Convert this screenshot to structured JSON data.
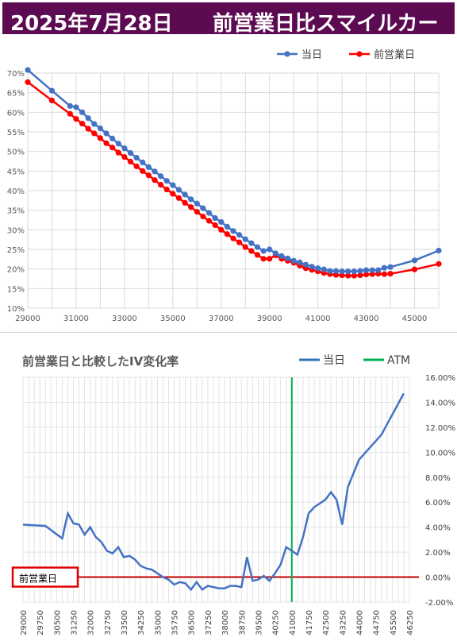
{
  "header": {
    "date": "2025年7月28日",
    "title": "前営業日比スマイルカーブ",
    "bg_color": "#5c0b52"
  },
  "chart_data": [
    {
      "type": "line",
      "title": "",
      "legend_position": "top-right",
      "grid": true,
      "xlim": [
        29000,
        46000
      ],
      "ylim": [
        10,
        70
      ],
      "x_ticks": [
        29000,
        31000,
        33000,
        35000,
        37000,
        39000,
        41000,
        43000,
        45000
      ],
      "y_ticks": [
        10,
        15,
        20,
        25,
        30,
        35,
        40,
        45,
        50,
        55,
        60,
        65,
        70
      ],
      "y_tick_suffix": "%",
      "series": [
        {
          "name": "当日",
          "color": "#4472c4",
          "x": [
            29000,
            30000,
            30750,
            31000,
            31250,
            31500,
            31750,
            32000,
            32250,
            32500,
            32750,
            33000,
            33250,
            33500,
            33750,
            34000,
            34250,
            34500,
            34750,
            35000,
            35250,
            35500,
            35750,
            36000,
            36250,
            36500,
            36750,
            37000,
            37250,
            37500,
            37750,
            38000,
            38250,
            38500,
            38750,
            39000,
            39250,
            39500,
            39750,
            40000,
            40250,
            40500,
            40750,
            41000,
            41250,
            41500,
            41750,
            42000,
            42250,
            42500,
            42750,
            43000,
            43250,
            43500,
            43750,
            44000,
            45000,
            46000
          ],
          "y": [
            70.8,
            65.5,
            61.6,
            61.3,
            60.0,
            58.5,
            57.0,
            55.9,
            54.6,
            53.3,
            52.0,
            50.8,
            49.6,
            48.4,
            47.2,
            46.0,
            44.9,
            43.7,
            42.5,
            41.4,
            40.2,
            39.0,
            37.8,
            36.7,
            35.5,
            34.3,
            33.0,
            32.0,
            30.8,
            29.7,
            28.7,
            27.6,
            26.6,
            25.6,
            24.6,
            25.0,
            24.0,
            23.3,
            22.7,
            22.1,
            21.7,
            21.1,
            20.6,
            20.2,
            19.9,
            19.5,
            19.5,
            19.4,
            19.4,
            19.4,
            19.5,
            19.7,
            19.7,
            19.7,
            20.3,
            20.5,
            22.2,
            24.7
          ]
        },
        {
          "name": "前営業日",
          "color": "#ff0000",
          "x": [
            29000,
            30000,
            30750,
            31000,
            31250,
            31500,
            31750,
            32000,
            32250,
            32500,
            32750,
            33000,
            33250,
            33500,
            33750,
            34000,
            34250,
            34500,
            34750,
            35000,
            35250,
            35500,
            35750,
            36000,
            36250,
            36500,
            36750,
            37000,
            37250,
            37500,
            37750,
            38000,
            38250,
            38500,
            38750,
            39000,
            39250,
            39500,
            39750,
            40000,
            40250,
            40500,
            40750,
            41000,
            41250,
            41500,
            41750,
            42000,
            42250,
            42500,
            42750,
            43000,
            43250,
            43500,
            43750,
            44000,
            45000,
            46000
          ],
          "y": [
            67.7,
            63.0,
            59.6,
            58.3,
            57.1,
            55.8,
            54.6,
            53.4,
            52.1,
            51.0,
            49.7,
            48.6,
            47.4,
            46.2,
            45.0,
            43.9,
            42.7,
            41.5,
            40.3,
            39.2,
            38.1,
            36.9,
            35.8,
            34.6,
            33.4,
            32.3,
            31.2,
            30.0,
            28.9,
            27.8,
            26.8,
            25.6,
            24.6,
            23.6,
            22.6,
            22.6,
            23.5,
            22.6,
            22.1,
            21.6,
            20.9,
            20.2,
            19.8,
            19.4,
            19.0,
            18.7,
            18.5,
            18.4,
            18.3,
            18.3,
            18.4,
            18.6,
            18.7,
            18.8,
            18.7,
            18.8,
            19.9,
            21.3
          ]
        }
      ]
    },
    {
      "type": "line",
      "title": "前営業日と比較したIV変化率",
      "legend_position": "top-right",
      "grid": true,
      "xlim": [
        29000,
        46250
      ],
      "ylim": [
        -2,
        16
      ],
      "x_ticks": [
        29000,
        29750,
        30500,
        31250,
        32000,
        32750,
        33500,
        34250,
        35000,
        35750,
        36500,
        37250,
        38000,
        38750,
        39500,
        40250,
        41000,
        41750,
        42500,
        43250,
        44000,
        44750,
        45500,
        46250
      ],
      "y_ticks": [
        -2,
        0,
        2,
        4,
        6,
        8,
        10,
        12,
        14,
        16
      ],
      "y_tick_format": "%",
      "reference_line": {
        "name": "前営業日",
        "value": 0,
        "color": "#c00000"
      },
      "atm_x": 41000,
      "series": [
        {
          "name": "当日",
          "color": "#4472c4",
          "x": [
            29000,
            30000,
            30750,
            31000,
            31250,
            31500,
            31750,
            32000,
            32250,
            32500,
            32750,
            33000,
            33250,
            33500,
            33750,
            34000,
            34250,
            34500,
            34750,
            35000,
            35250,
            35500,
            35750,
            36000,
            36250,
            36500,
            36750,
            37000,
            37250,
            37500,
            37750,
            38000,
            38250,
            38500,
            38750,
            39000,
            39250,
            39500,
            39750,
            40000,
            40250,
            40500,
            40750,
            41000,
            41250,
            41500,
            41750,
            42000,
            42250,
            42500,
            42750,
            43000,
            43250,
            43500,
            43750,
            44000,
            45000,
            46000
          ],
          "y": [
            4.2,
            4.1,
            3.1,
            5.1,
            4.3,
            4.2,
            3.4,
            4.0,
            3.2,
            2.8,
            2.1,
            1.9,
            2.4,
            1.6,
            1.7,
            1.4,
            0.9,
            0.7,
            0.6,
            0.3,
            0.0,
            -0.2,
            -0.6,
            -0.4,
            -0.5,
            -1.0,
            -0.4,
            -1.0,
            -0.7,
            -0.8,
            -0.9,
            -0.9,
            -0.7,
            -0.7,
            -0.8,
            1.6,
            -0.3,
            -0.2,
            0.1,
            -0.3,
            0.3,
            1.0,
            2.4,
            2.1,
            1.8,
            3.2,
            5.1,
            5.6,
            5.9,
            6.2,
            6.8,
            6.2,
            4.2,
            7.2,
            8.3,
            9.4,
            11.4,
            14.7
          ]
        }
      ],
      "legend": [
        {
          "name": "当日",
          "color": "#2e75b6"
        },
        {
          "name": "ATM",
          "color": "#00b050"
        }
      ]
    }
  ]
}
